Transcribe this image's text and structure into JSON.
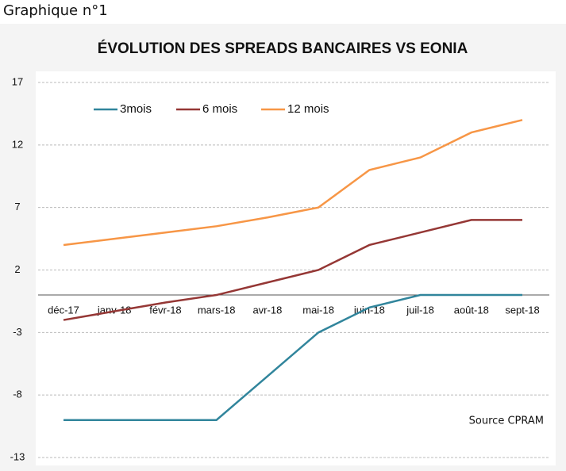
{
  "caption": "Graphique n°1",
  "chart_data": {
    "type": "line",
    "title": "ÉVOLUTION DES SPREADS BANCAIRES VS EONIA",
    "source": "Source CPRAM",
    "categories": [
      "déc-17",
      "janv-18",
      "févr-18",
      "mars-18",
      "avr-18",
      "mai-18",
      "juin-18",
      "juil-18",
      "août-18",
      "sept-18"
    ],
    "series": [
      {
        "name": "3mois",
        "color": "#31859c",
        "values": [
          -10,
          -10,
          -10,
          -10,
          -6.5,
          -3,
          -1,
          0,
          0,
          0
        ]
      },
      {
        "name": "6 mois",
        "color": "#953735",
        "values": [
          -2,
          -1.3,
          -0.6,
          0,
          1,
          2,
          4,
          5,
          6,
          6
        ]
      },
      {
        "name": "12 mois",
        "color": "#f79646",
        "values": [
          4,
          4.5,
          5,
          5.5,
          6.2,
          7,
          10,
          11,
          13,
          14
        ]
      }
    ],
    "ylim": [
      -13,
      17
    ],
    "yticks": [
      -13,
      -8,
      -3,
      2,
      7,
      12,
      17
    ],
    "grid": true
  }
}
